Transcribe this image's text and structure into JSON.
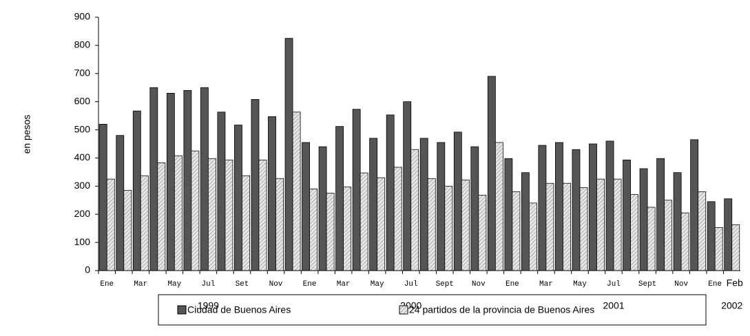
{
  "chart_data": {
    "type": "bar",
    "y_label": "en pesos",
    "categories": [
      "Ene",
      null,
      "Mar",
      null,
      "May",
      null,
      "Jul",
      null,
      "Set",
      null,
      "Nov",
      null,
      "Ene",
      null,
      "Mar",
      null,
      "May",
      null,
      "Jul",
      null,
      "Sept",
      null,
      "Nov",
      null,
      "Ene",
      null,
      "Mar",
      null,
      "May",
      null,
      "Jul",
      null,
      "Sept",
      null,
      "Nov",
      null,
      "Ene",
      "Feb"
    ],
    "x_group_labels": [
      null,
      null,
      null,
      null,
      null,
      null,
      "1999",
      null,
      null,
      null,
      null,
      null,
      null,
      null,
      null,
      null,
      null,
      null,
      "2000",
      null,
      null,
      null,
      null,
      null,
      null,
      null,
      null,
      null,
      null,
      null,
      "2001",
      null,
      null,
      null,
      null,
      null,
      null,
      "2002"
    ],
    "series": [
      {
        "name": "Ciudad de Buenos Aires",
        "color": "#555555",
        "values": [
          520,
          480,
          567,
          650,
          630,
          640,
          650,
          563,
          517,
          608,
          547,
          825,
          455,
          440,
          512,
          573,
          470,
          553,
          600,
          470,
          455,
          492,
          440,
          690,
          398,
          348,
          445,
          455,
          430,
          450,
          460,
          393,
          362,
          398,
          348,
          465,
          245,
          255
        ]
      },
      {
        "name": "24 partidos de la provincia de Buenos Aires",
        "color": "#e6e6e6",
        "values": [
          325,
          285,
          337,
          383,
          408,
          425,
          398,
          393,
          337,
          393,
          327,
          563,
          290,
          275,
          297,
          347,
          330,
          367,
          430,
          327,
          300,
          322,
          268,
          455,
          280,
          240,
          310,
          310,
          295,
          325,
          325,
          270,
          225,
          250,
          205,
          280,
          153,
          163
        ]
      }
    ],
    "ylim": [
      0,
      900
    ],
    "yticks": [
      0,
      100,
      200,
      300,
      400,
      500,
      600,
      700,
      800,
      900
    ],
    "grid": false,
    "legend": "bottom"
  }
}
